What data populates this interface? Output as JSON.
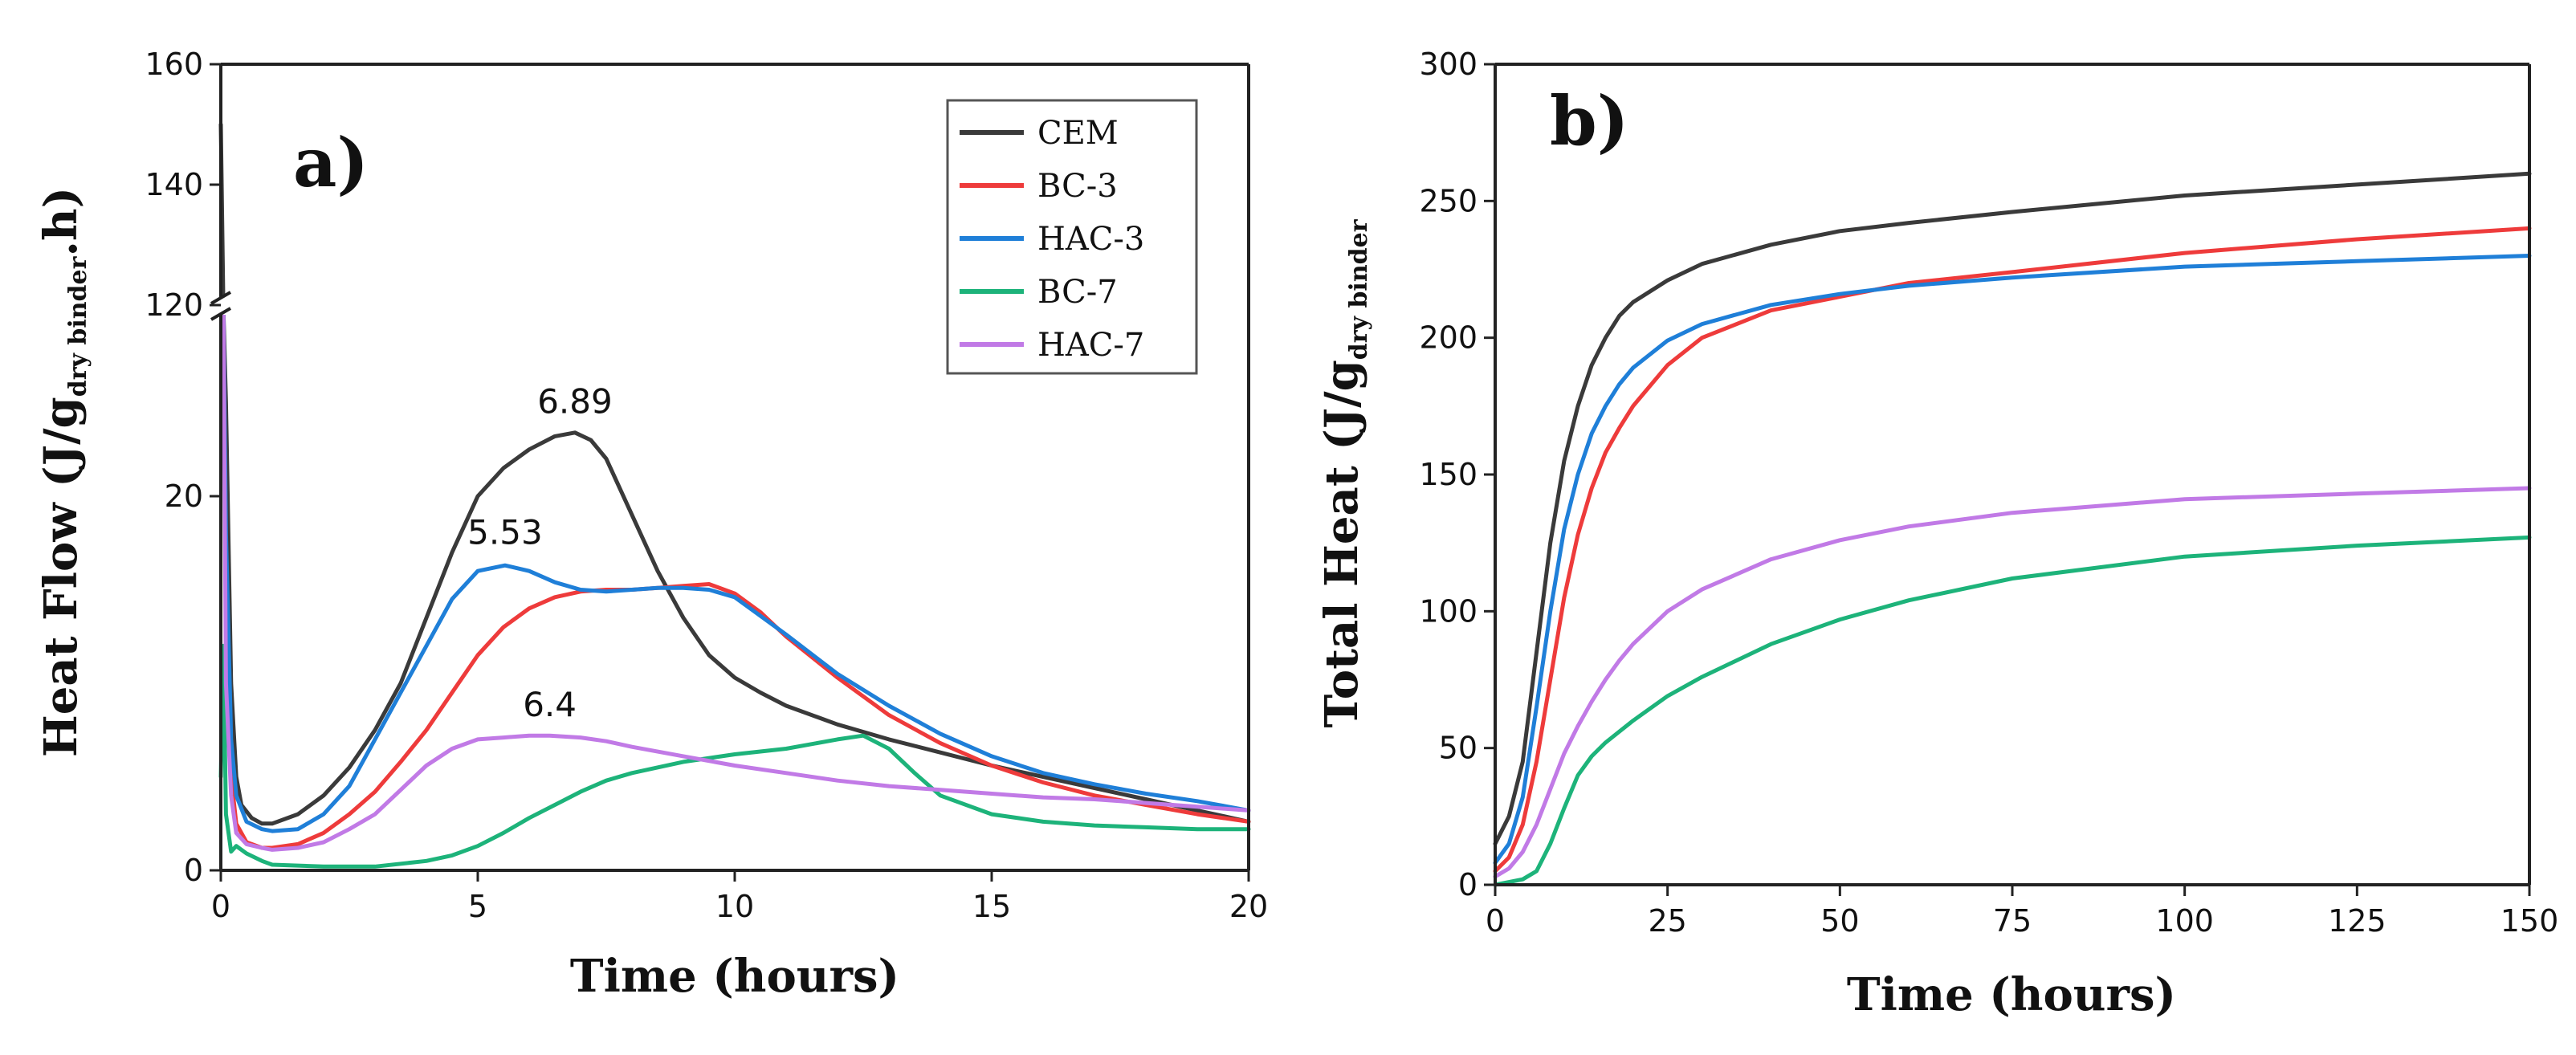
{
  "chart_data": [
    {
      "panel": "a)",
      "type": "line",
      "xlabel": "Time (hours)",
      "ylabel_main": "Heat Flow (J/g",
      "ylabel_sub": "dry binder",
      "ylabel_tail": ".h)",
      "xlim": [
        0,
        20
      ],
      "xticks": [
        0,
        5,
        10,
        15,
        20
      ],
      "ylim_lower": [
        0,
        30
      ],
      "ylim_upper": [
        120,
        160
      ],
      "yticks_lower": [
        0,
        20
      ],
      "yticks_upper": [
        120,
        140,
        160
      ],
      "y_axis_break": [
        30,
        120
      ],
      "legend_position": "top-right",
      "annotations": [
        {
          "text": "6.89",
          "x": 6.89,
          "y": 23.5
        },
        {
          "text": "5.53",
          "x": 5.53,
          "y": 16.5
        },
        {
          "text": "6.4",
          "x": 6.4,
          "y": 7.3
        }
      ],
      "series": [
        {
          "name": "CEM",
          "color": "#3a3a3a",
          "x": [
            0,
            0.05,
            0.1,
            0.2,
            0.3,
            0.4,
            0.6,
            0.8,
            1,
            1.5,
            2,
            2.5,
            3,
            3.5,
            4,
            4.5,
            5,
            5.5,
            6,
            6.5,
            6.89,
            7.2,
            7.5,
            8,
            8.5,
            9,
            9.5,
            10,
            10.5,
            11,
            12,
            13,
            14,
            15,
            16,
            17,
            18,
            19,
            20
          ],
          "y": [
            150,
            60,
            25,
            10,
            5,
            3.5,
            2.8,
            2.5,
            2.5,
            3,
            4,
            5.5,
            7.5,
            10,
            13.5,
            17,
            20,
            21.5,
            22.5,
            23.2,
            23.4,
            23,
            22,
            19,
            16,
            13.5,
            11.5,
            10.3,
            9.5,
            8.8,
            7.8,
            7,
            6.3,
            5.6,
            5,
            4.4,
            3.8,
            3.2,
            2.6
          ]
        },
        {
          "name": "BC-3",
          "color": "#ee3b3b",
          "x": [
            0,
            0.05,
            0.1,
            0.2,
            0.3,
            0.5,
            0.8,
            1,
            1.5,
            2,
            2.5,
            3,
            3.5,
            4,
            4.5,
            5,
            5.5,
            6,
            6.5,
            7,
            7.5,
            8,
            8.5,
            9,
            9.5,
            10,
            10.5,
            11,
            12,
            13,
            14,
            15,
            16,
            17,
            18,
            19,
            20
          ],
          "y": [
            120,
            40,
            15,
            5,
            2.5,
            1.5,
            1.2,
            1.2,
            1.4,
            2,
            3,
            4.2,
            5.8,
            7.5,
            9.5,
            11.5,
            13,
            14,
            14.6,
            14.9,
            15,
            15,
            15.1,
            15.2,
            15.3,
            14.8,
            13.8,
            12.5,
            10.3,
            8.3,
            6.8,
            5.6,
            4.7,
            4,
            3.5,
            3,
            2.6
          ]
        },
        {
          "name": "HAC-3",
          "color": "#1f7fd8",
          "x": [
            0,
            0.05,
            0.1,
            0.2,
            0.3,
            0.5,
            0.8,
            1,
            1.5,
            2,
            2.5,
            3,
            3.5,
            4,
            4.5,
            5,
            5.53,
            6,
            6.5,
            7,
            7.5,
            8,
            8.5,
            9,
            9.5,
            10,
            11,
            12,
            13,
            14,
            15,
            16,
            17,
            18,
            19,
            20
          ],
          "y": [
            110,
            45,
            18,
            7,
            4,
            2.6,
            2.2,
            2.1,
            2.2,
            3,
            4.5,
            7,
            9.5,
            12,
            14.5,
            16,
            16.3,
            16,
            15.4,
            15,
            14.9,
            15,
            15.1,
            15.1,
            15,
            14.6,
            12.6,
            10.5,
            8.8,
            7.3,
            6.1,
            5.2,
            4.6,
            4.1,
            3.7,
            3.2
          ]
        },
        {
          "name": "BC-7",
          "color": "#1db37a",
          "x": [
            0,
            0.05,
            0.1,
            0.2,
            0.3,
            0.5,
            0.8,
            1,
            2,
            3,
            4,
            4.5,
            5,
            5.5,
            6,
            6.5,
            7,
            7.5,
            8,
            9,
            10,
            11,
            12,
            12.5,
            13,
            13.5,
            14,
            15,
            16,
            17,
            18,
            19,
            20
          ],
          "y": [
            5,
            12,
            3,
            1,
            1.3,
            0.9,
            0.5,
            0.3,
            0.2,
            0.2,
            0.5,
            0.8,
            1.3,
            2,
            2.8,
            3.5,
            4.2,
            4.8,
            5.2,
            5.8,
            6.2,
            6.5,
            7,
            7.2,
            6.5,
            5.2,
            4,
            3,
            2.6,
            2.4,
            2.3,
            2.2,
            2.2
          ]
        },
        {
          "name": "HAC-7",
          "color": "#c17ae6",
          "x": [
            0,
            0.05,
            0.1,
            0.2,
            0.3,
            0.5,
            0.8,
            1,
            1.5,
            2,
            2.5,
            3,
            3.5,
            4,
            4.5,
            5,
            5.5,
            6,
            6.4,
            7,
            7.5,
            8,
            9,
            10,
            11,
            12,
            13,
            14,
            15,
            16,
            17,
            18,
            19,
            20
          ],
          "y": [
            80,
            30,
            10,
            4,
            2,
            1.4,
            1.2,
            1.1,
            1.2,
            1.5,
            2.2,
            3,
            4.3,
            5.6,
            6.5,
            7,
            7.1,
            7.2,
            7.2,
            7.1,
            6.9,
            6.6,
            6.1,
            5.6,
            5.2,
            4.8,
            4.5,
            4.3,
            4.1,
            3.9,
            3.8,
            3.6,
            3.4,
            3.2
          ]
        }
      ]
    },
    {
      "panel": "b)",
      "type": "line",
      "xlabel": "Time (hours)",
      "ylabel_main": "Total Heat (J/g",
      "ylabel_sub": "dry binder",
      "ylabel_tail": "",
      "xlim": [
        0,
        150
      ],
      "xticks": [
        0,
        25,
        50,
        75,
        100,
        125,
        150
      ],
      "ylim": [
        0,
        300
      ],
      "yticks": [
        0,
        50,
        100,
        150,
        200,
        250,
        300
      ],
      "series": [
        {
          "name": "CEM",
          "color": "#3a3a3a",
          "x": [
            0,
            2,
            4,
            6,
            8,
            10,
            12,
            14,
            16,
            18,
            20,
            25,
            30,
            40,
            50,
            60,
            75,
            100,
            125,
            150
          ],
          "y": [
            15,
            25,
            45,
            85,
            125,
            155,
            175,
            190,
            200,
            208,
            213,
            221,
            227,
            234,
            239,
            242,
            246,
            252,
            256,
            260
          ]
        },
        {
          "name": "BC-3",
          "color": "#ee3b3b",
          "x": [
            0,
            2,
            4,
            6,
            8,
            10,
            12,
            14,
            16,
            18,
            20,
            25,
            30,
            40,
            50,
            60,
            75,
            100,
            125,
            150
          ],
          "y": [
            5,
            10,
            22,
            45,
            75,
            105,
            128,
            145,
            158,
            167,
            175,
            190,
            200,
            210,
            215,
            220,
            224,
            231,
            236,
            240
          ]
        },
        {
          "name": "HAC-3",
          "color": "#1f7fd8",
          "x": [
            0,
            2,
            4,
            6,
            8,
            10,
            12,
            14,
            16,
            18,
            20,
            25,
            30,
            40,
            50,
            60,
            75,
            100,
            125,
            150
          ],
          "y": [
            8,
            15,
            32,
            65,
            100,
            130,
            150,
            165,
            175,
            183,
            189,
            199,
            205,
            212,
            216,
            219,
            222,
            226,
            228,
            230
          ]
        },
        {
          "name": "BC-7",
          "color": "#1db37a",
          "x": [
            0,
            2,
            4,
            6,
            8,
            10,
            12,
            14,
            16,
            18,
            20,
            25,
            30,
            40,
            50,
            60,
            75,
            100,
            125,
            150
          ],
          "y": [
            0,
            1,
            2,
            5,
            15,
            28,
            40,
            47,
            52,
            56,
            60,
            69,
            76,
            88,
            97,
            104,
            112,
            120,
            124,
            127
          ]
        },
        {
          "name": "HAC-7",
          "color": "#c17ae6",
          "x": [
            0,
            2,
            4,
            6,
            8,
            10,
            12,
            14,
            16,
            18,
            20,
            25,
            30,
            40,
            50,
            60,
            75,
            100,
            125,
            150
          ],
          "y": [
            3,
            6,
            12,
            22,
            35,
            48,
            58,
            67,
            75,
            82,
            88,
            100,
            108,
            119,
            126,
            131,
            136,
            141,
            143,
            145
          ]
        }
      ]
    }
  ]
}
